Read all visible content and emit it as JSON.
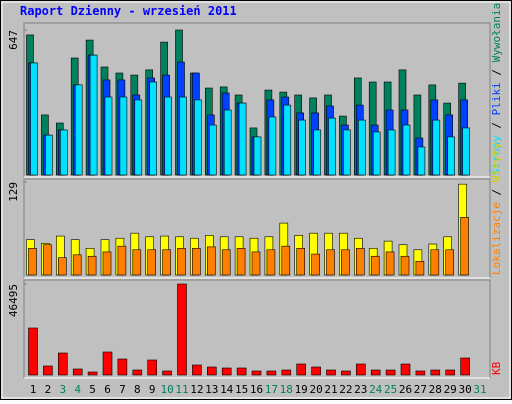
{
  "title": "Raport Dzienny -  wrzesień 2011",
  "chart_data": [
    {
      "type": "bar",
      "ylim": [
        0,
        647
      ],
      "yticks": [
        647
      ],
      "series": [
        {
          "name": "Wywołania",
          "color": "#00805c",
          "values": [
            625,
            268,
            232,
            522,
            602,
            482,
            455,
            446,
            469,
            593,
            647,
            455,
            388,
            393,
            357,
            210,
            379,
            370,
            357,
            344,
            357,
            263,
            433,
            415,
            415,
            469,
            357,
            402,
            321,
            410,
            null
          ]
        },
        {
          "name": "Pliki",
          "color": "#0040ff",
          "values": [
            500,
            178,
            201,
            402,
            535,
            424,
            424,
            357,
            433,
            446,
            504,
            455,
            268,
            366,
            321,
            170,
            335,
            348,
            277,
            277,
            308,
            223,
            312,
            223,
            290,
            290,
            165,
            335,
            268,
            335,
            null
          ]
        },
        {
          "name": "Strony",
          "color": "#00e0ff",
          "values": [
            500,
            178,
            201,
            402,
            535,
            348,
            348,
            335,
            415,
            348,
            348,
            335,
            223,
            290,
            321,
            170,
            259,
            312,
            245,
            201,
            254,
            201,
            245,
            192,
            201,
            223,
            125,
            245,
            170,
            210,
            null
          ]
        }
      ]
    },
    {
      "type": "bar",
      "ylim": [
        0,
        129
      ],
      "yticks": [
        129
      ],
      "series": [
        {
          "name": "Wizyty",
          "color": "#ffff00",
          "values": [
            49,
            44,
            54,
            49,
            37,
            49,
            51,
            58,
            53,
            54,
            53,
            51,
            55,
            53,
            53,
            51,
            53,
            72,
            55,
            58,
            58,
            58,
            51,
            37,
            47,
            42,
            35,
            43,
            53,
            126,
            null
          ]
        },
        {
          "name": "Lokalizacje",
          "color": "#ff8000",
          "values": [
            37,
            42,
            24,
            28,
            26,
            32,
            40,
            35,
            35,
            35,
            37,
            37,
            39,
            35,
            37,
            32,
            35,
            40,
            37,
            29,
            35,
            35,
            37,
            26,
            32,
            26,
            19,
            35,
            35,
            80,
            null
          ]
        }
      ]
    },
    {
      "type": "bar",
      "ylim": [
        0,
        46495
      ],
      "yticks": [
        46495
      ],
      "categories": [
        "1",
        "2",
        "3",
        "4",
        "5",
        "6",
        "7",
        "8",
        "9",
        "10",
        "11",
        "12",
        "13",
        "14",
        "15",
        "16",
        "17",
        "18",
        "19",
        "20",
        "21",
        "22",
        "23",
        "24",
        "25",
        "26",
        "27",
        "28",
        "29",
        "30",
        "31"
      ],
      "category_colors": [
        "#000000",
        "#000000",
        "#00805c",
        "#00805c",
        "#000000",
        "#000000",
        "#000000",
        "#000000",
        "#000000",
        "#00805c",
        "#00805c",
        "#000000",
        "#000000",
        "#000000",
        "#000000",
        "#000000",
        "#00805c",
        "#00805c",
        "#000000",
        "#000000",
        "#000000",
        "#000000",
        "#000000",
        "#00805c",
        "#00805c",
        "#000000",
        "#000000",
        "#000000",
        "#000000",
        "#000000",
        "#00805c"
      ],
      "series": [
        {
          "name": "KB",
          "color": "#ff0000",
          "values": [
            24014,
            4598,
            11241,
            3066,
            1533,
            11752,
            8175,
            2555,
            7664,
            2044,
            46495,
            5109,
            4088,
            3577,
            3577,
            2044,
            2044,
            2555,
            5620,
            4088,
            2555,
            2044,
            5620,
            2555,
            2555,
            5620,
            2044,
            2555,
            2555,
            8686,
            null
          ]
        }
      ]
    }
  ]
}
